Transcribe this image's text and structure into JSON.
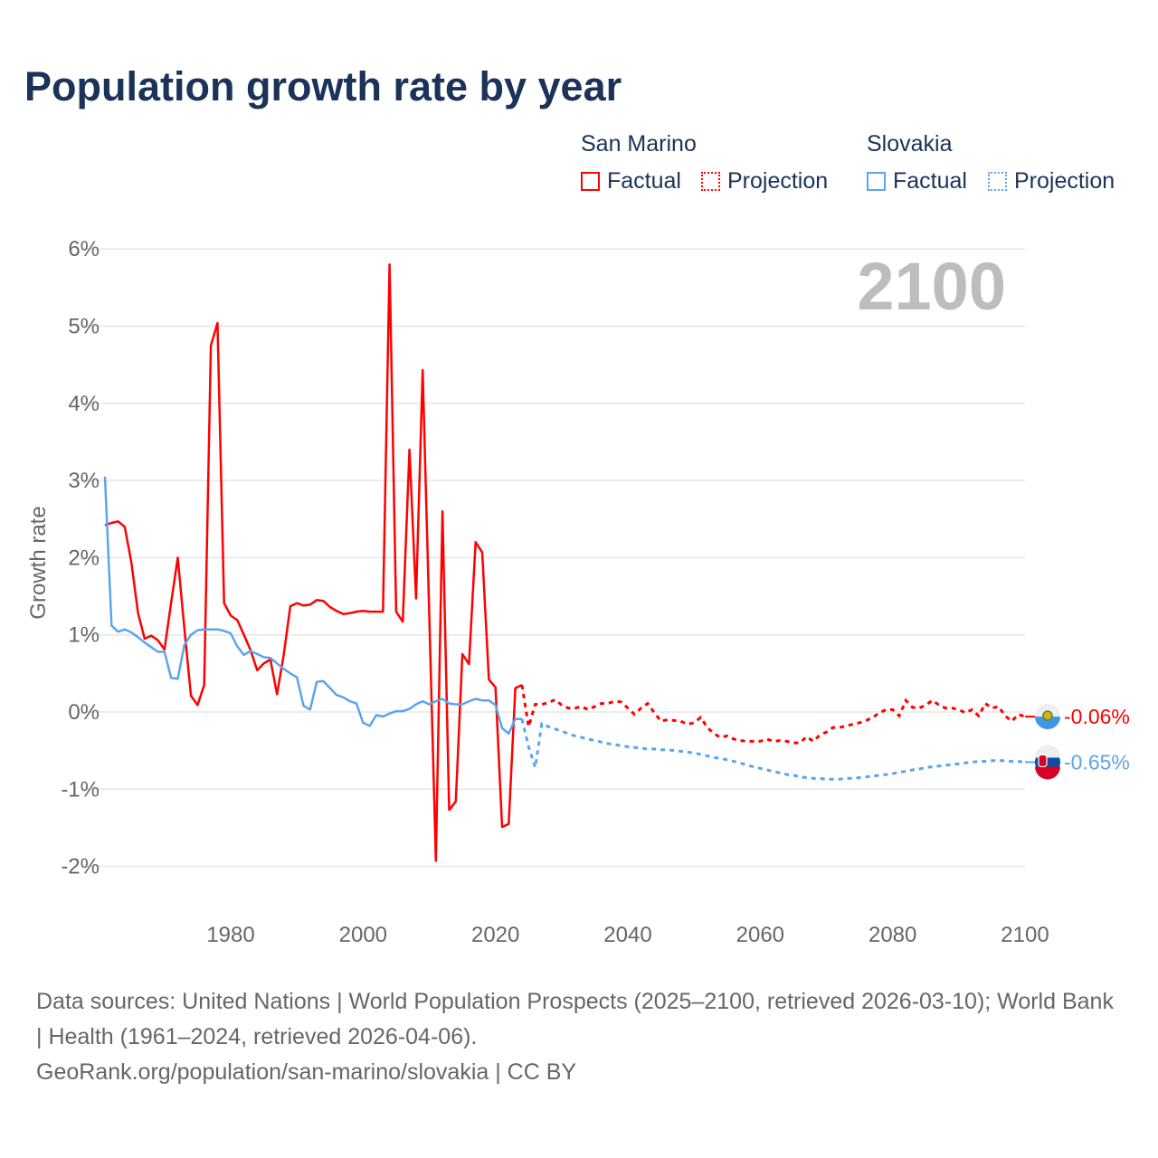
{
  "chart_data": {
    "type": "line",
    "title": "Population growth rate by year",
    "ylabel": "Growth rate",
    "xlabel": "",
    "ylim": [
      -2,
      6
    ],
    "xlim": [
      1961,
      2100
    ],
    "yticks": [
      "6%",
      "5%",
      "4%",
      "3%",
      "2%",
      "1%",
      "0%",
      "-1%",
      "-2%"
    ],
    "ytick_values": [
      6,
      5,
      4,
      3,
      2,
      1,
      0,
      -1,
      -2
    ],
    "xticks": [
      "1980",
      "2000",
      "2020",
      "2040",
      "2060",
      "2080",
      "2100"
    ],
    "xtick_values": [
      1980,
      2000,
      2020,
      2040,
      2060,
      2080,
      2100
    ],
    "grid": true,
    "year_label": "2100",
    "legend": {
      "placement": "top-right",
      "groups": [
        {
          "name": "San Marino",
          "factual": "Factual",
          "projection": "Projection"
        },
        {
          "name": "Slovakia",
          "factual": "Factual",
          "projection": "Projection"
        }
      ]
    },
    "series": [
      {
        "name": "San Marino",
        "color": "#ff0000",
        "end_label": "-0.06%",
        "factual_start": 1961,
        "factual": [
          2.42,
          2.45,
          2.47,
          2.4,
          1.93,
          1.28,
          0.95,
          0.99,
          0.93,
          0.81,
          1.42,
          2.0,
          1.08,
          0.21,
          0.09,
          0.35,
          4.75,
          5.04,
          1.41,
          1.25,
          1.19,
          1.0,
          0.8,
          0.54,
          0.63,
          0.68,
          0.23,
          0.73,
          1.37,
          1.41,
          1.38,
          1.39,
          1.45,
          1.44,
          1.36,
          1.31,
          1.27,
          1.28,
          1.3,
          1.31,
          1.3,
          1.3,
          1.3,
          5.8,
          1.3,
          1.17,
          3.4,
          1.47,
          4.43,
          1.25,
          -1.93,
          2.6,
          -1.27,
          -1.16,
          0.75,
          0.62,
          2.2,
          2.07,
          0.42,
          0.32,
          -1.49,
          -1.45,
          0.31,
          0.35
        ],
        "projection_start": 2024,
        "projection": [
          0.35,
          -0.19,
          0.1,
          0.1,
          0.12,
          0.16,
          0.09,
          0.05,
          0.05,
          0.07,
          0.03,
          0.07,
          0.11,
          0.11,
          0.14,
          0.13,
          0.05,
          -0.03,
          0.05,
          0.11,
          -0.01,
          -0.12,
          -0.1,
          -0.11,
          -0.12,
          -0.16,
          -0.14,
          -0.07,
          -0.2,
          -0.28,
          -0.33,
          -0.31,
          -0.35,
          -0.37,
          -0.38,
          -0.38,
          -0.38,
          -0.35,
          -0.38,
          -0.37,
          -0.38,
          -0.4,
          -0.4,
          -0.32,
          -0.38,
          -0.3,
          -0.26,
          -0.2,
          -0.2,
          -0.18,
          -0.16,
          -0.14,
          -0.11,
          -0.07,
          -0.01,
          0.03,
          0.03,
          -0.05,
          0.15,
          0.06,
          0.05,
          0.09,
          0.15,
          0.09,
          0.05,
          0.05,
          0.03,
          -0.01,
          0.03,
          -0.05,
          0.11,
          0.05,
          0.07,
          -0.05,
          -0.12,
          -0.03,
          -0.06
        ]
      },
      {
        "name": "Slovakia",
        "color": "#5aa5ee",
        "end_label": "-0.65%",
        "factual_start": 1961,
        "factual": [
          3.05,
          1.12,
          1.04,
          1.07,
          1.03,
          0.97,
          0.9,
          0.84,
          0.78,
          0.78,
          0.44,
          0.43,
          0.87,
          1.0,
          1.06,
          1.07,
          1.07,
          1.07,
          1.05,
          1.02,
          0.85,
          0.74,
          0.79,
          0.75,
          0.71,
          0.7,
          0.63,
          0.56,
          0.5,
          0.45,
          0.08,
          0.03,
          0.39,
          0.4,
          0.31,
          0.22,
          0.19,
          0.14,
          0.11,
          -0.14,
          -0.18,
          -0.04,
          -0.06,
          -0.02,
          0.01,
          0.01,
          0.04,
          0.1,
          0.14,
          0.1,
          0.14,
          0.17,
          0.11,
          0.1,
          0.1,
          0.14,
          0.17,
          0.15,
          0.15,
          0.09,
          -0.21,
          -0.28,
          -0.09,
          -0.09
        ],
        "projection_start": 2024,
        "projection": [
          -0.09,
          -0.45,
          -0.72,
          -0.15,
          -0.19,
          -0.22,
          -0.25,
          -0.28,
          -0.31,
          -0.33,
          -0.35,
          -0.37,
          -0.39,
          -0.41,
          -0.42,
          -0.44,
          -0.45,
          -0.46,
          -0.47,
          -0.48,
          -0.48,
          -0.49,
          -0.49,
          -0.5,
          -0.51,
          -0.52,
          -0.53,
          -0.55,
          -0.57,
          -0.59,
          -0.6,
          -0.62,
          -0.64,
          -0.66,
          -0.69,
          -0.71,
          -0.73,
          -0.75,
          -0.77,
          -0.79,
          -0.81,
          -0.82,
          -0.84,
          -0.85,
          -0.86,
          -0.86,
          -0.87,
          -0.87,
          -0.87,
          -0.86,
          -0.86,
          -0.85,
          -0.84,
          -0.83,
          -0.82,
          -0.81,
          -0.8,
          -0.78,
          -0.77,
          -0.75,
          -0.74,
          -0.72,
          -0.71,
          -0.7,
          -0.69,
          -0.68,
          -0.67,
          -0.66,
          -0.65,
          -0.64,
          -0.64,
          -0.63,
          -0.63,
          -0.63,
          -0.64,
          -0.64,
          -0.65
        ]
      }
    ]
  },
  "footer": {
    "line1": "Data sources: United Nations | World Population Prospects (2025–2100, retrieved 2026-03-10); World Bank | Health (1961–2024, retrieved 2026-04-06).",
    "line2": "GeoRank.org/population/san-marino/slovakia | CC BY"
  }
}
